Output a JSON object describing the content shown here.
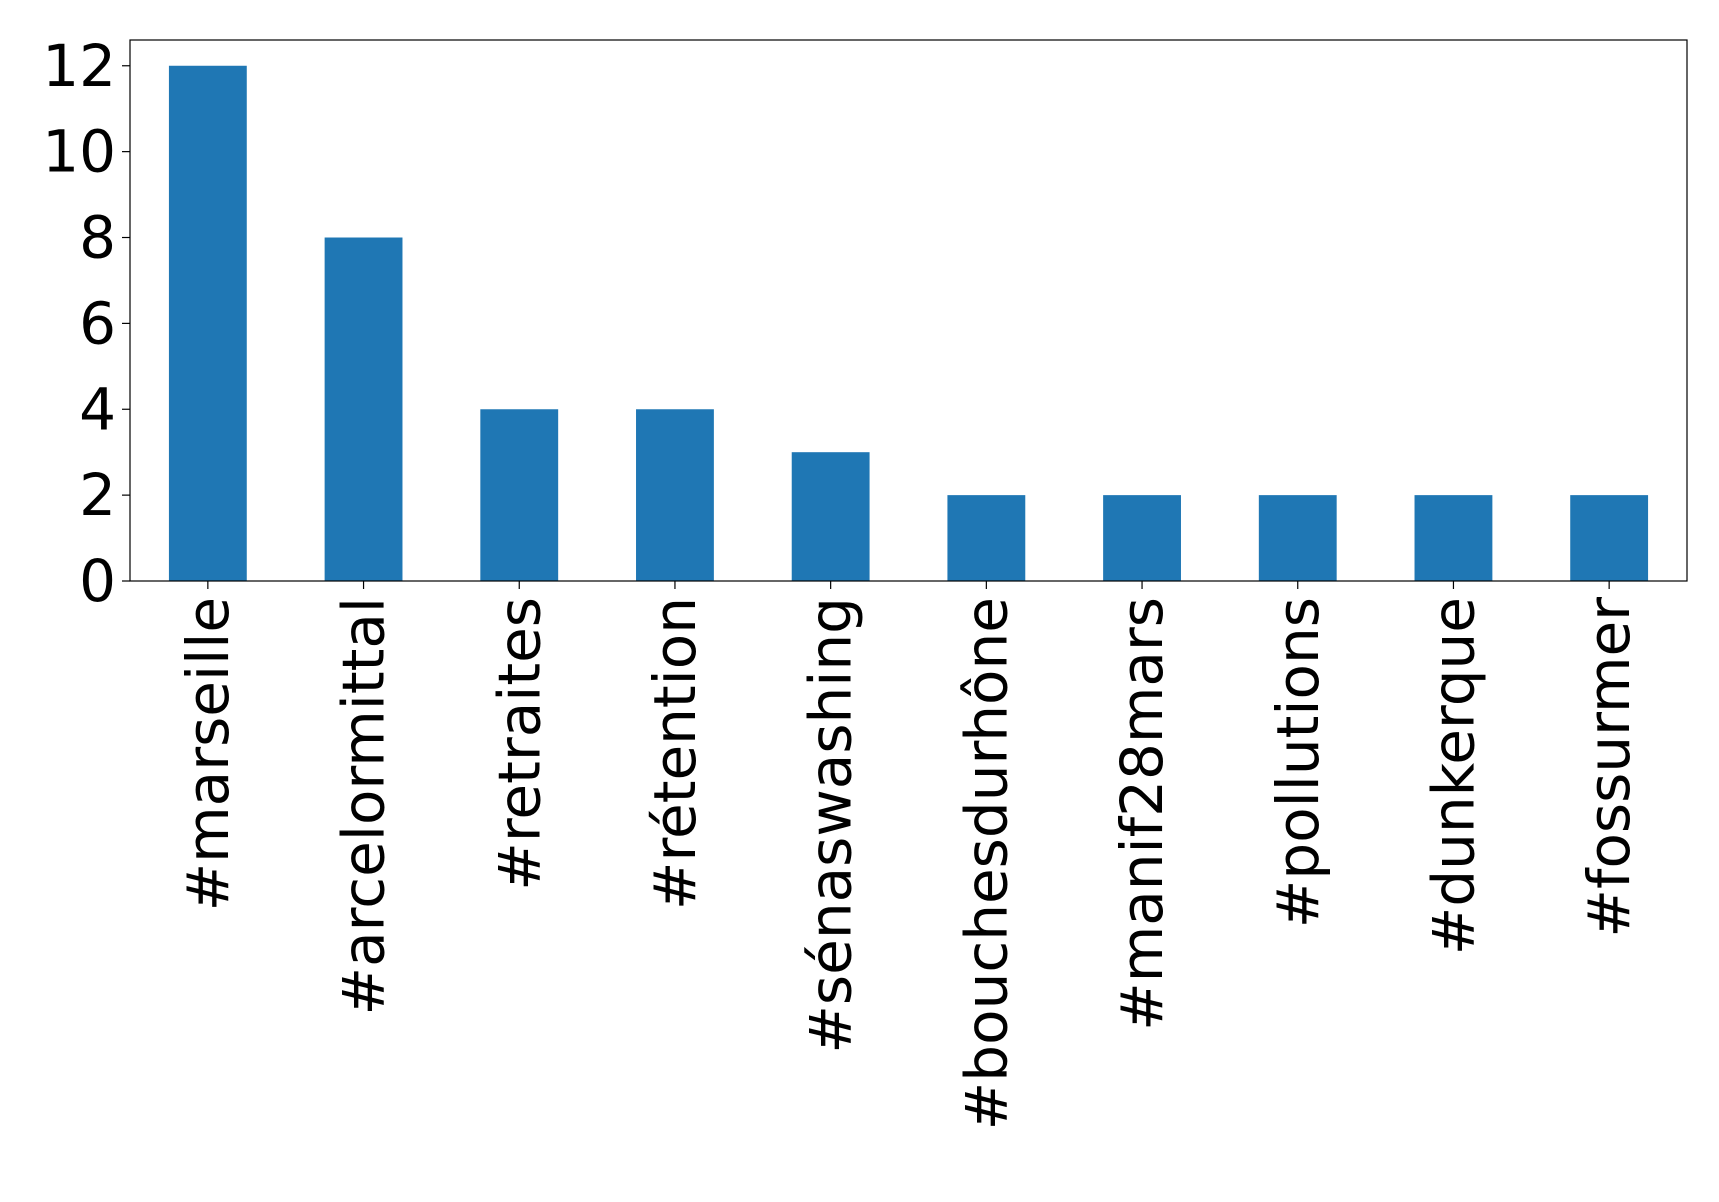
{
  "chart_data": {
    "type": "bar",
    "categories": [
      "#marseille",
      "#arcelormittal",
      "#retraites",
      "#rétention",
      "#sénaswashing",
      "#bouchesdurhône",
      "#manif28mars",
      "#pollutions",
      "#dunkerque",
      "#fossurmer"
    ],
    "values": [
      12,
      8,
      4,
      4,
      3,
      2,
      2,
      2,
      2,
      2
    ],
    "color": "#1f77b4",
    "ylim": [
      0,
      12.6
    ],
    "yticks": [
      0,
      2,
      4,
      6,
      8,
      10,
      12
    ],
    "grid": false
  }
}
